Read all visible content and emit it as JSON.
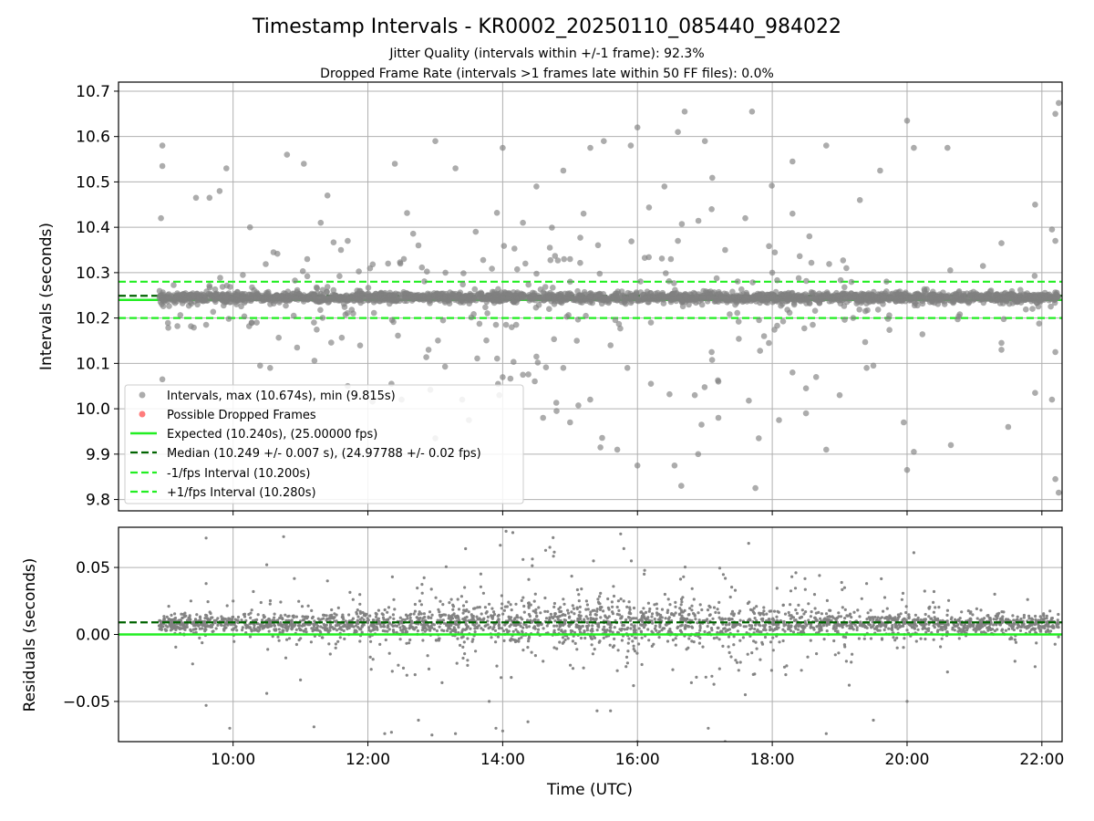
{
  "figure": {
    "title": "Timestamp Intervals - KR0002_20250110_085440_984022",
    "subtitle_line1": "Jitter Quality (intervals within +/-1 frame): 92.3%",
    "subtitle_line2": "Dropped Frame Rate (intervals >1 frames late within 50 FF files): 0.0%"
  },
  "colors": {
    "points": "#808080",
    "dropped": "#ff4444",
    "expected": "#22ee22",
    "median": "#006400",
    "fps_band": "#22ee22",
    "grid": "#b0b0b0"
  },
  "chart_data": [
    {
      "type": "scatter",
      "xlabel": "",
      "ylabel": "Intervals (seconds)",
      "x_unit": "hours (UTC)",
      "xlim": [
        8.3,
        22.3
      ],
      "ylim": [
        9.775,
        10.72
      ],
      "yticks": [
        9.8,
        9.9,
        10.0,
        10.1,
        10.2,
        10.3,
        10.4,
        10.5,
        10.6,
        10.7
      ],
      "ytick_labels": [
        "9.8",
        "9.9",
        "10.0",
        "10.1",
        "10.2",
        "10.3",
        "10.4",
        "10.5",
        "10.6",
        "10.7"
      ],
      "xticks": [
        10,
        12,
        14,
        16,
        18,
        20,
        22
      ],
      "grid": true,
      "legend_position": "lower-left",
      "series": [
        {
          "name": "Intervals, max (10.674s), min (9.815s)",
          "kind": "points",
          "color": "#808080",
          "x_range": [
            8.9,
            22.25
          ],
          "center": 10.245,
          "band": 0.012,
          "outliers": [
            [
              8.95,
              10.58
            ],
            [
              8.95,
              10.535
            ],
            [
              8.93,
              10.42
            ],
            [
              8.95,
              10.065
            ],
            [
              9.45,
              10.465
            ],
            [
              9.65,
              10.465
            ],
            [
              9.8,
              10.48
            ],
            [
              9.9,
              10.53
            ],
            [
              10.25,
              10.4
            ],
            [
              10.4,
              10.095
            ],
            [
              10.6,
              10.345
            ],
            [
              10.8,
              10.56
            ],
            [
              11.05,
              10.54
            ],
            [
              11.1,
              10.33
            ],
            [
              11.6,
              10.35
            ],
            [
              11.7,
              10.37
            ],
            [
              12.4,
              10.54
            ],
            [
              13.0,
              10.59
            ],
            [
              13.3,
              10.53
            ],
            [
              14.0,
              10.575
            ],
            [
              14.5,
              10.49
            ],
            [
              14.9,
              10.525
            ],
            [
              15.3,
              10.575
            ],
            [
              15.5,
              10.59
            ],
            [
              15.9,
              10.58
            ],
            [
              16.0,
              10.62
            ],
            [
              16.6,
              10.61
            ],
            [
              16.7,
              10.655
            ],
            [
              17.0,
              10.59
            ],
            [
              17.7,
              10.655
            ],
            [
              18.3,
              10.545
            ],
            [
              18.8,
              10.58
            ],
            [
              19.6,
              10.525
            ],
            [
              20.0,
              10.635
            ],
            [
              20.1,
              10.575
            ],
            [
              20.6,
              10.575
            ],
            [
              21.9,
              10.45
            ],
            [
              22.15,
              10.395
            ],
            [
              22.2,
              10.65
            ],
            [
              22.25,
              10.674
            ],
            [
              22.2,
              10.37
            ],
            [
              22.2,
              10.125
            ],
            [
              22.15,
              10.02
            ],
            [
              22.2,
              9.845
            ],
            [
              22.25,
              9.815
            ],
            [
              21.4,
              10.365
            ],
            [
              21.4,
              10.13
            ],
            [
              21.5,
              9.96
            ],
            [
              21.9,
              10.035
            ],
            [
              20.65,
              9.92
            ],
            [
              20.0,
              9.865
            ],
            [
              20.1,
              9.905
            ],
            [
              19.95,
              9.97
            ],
            [
              18.8,
              9.91
            ],
            [
              17.75,
              9.825
            ],
            [
              17.8,
              9.935
            ],
            [
              17.2,
              9.98
            ],
            [
              16.9,
              9.9
            ],
            [
              16.95,
              9.965
            ],
            [
              16.55,
              9.875
            ],
            [
              16.65,
              9.83
            ],
            [
              16.0,
              9.875
            ],
            [
              15.7,
              9.91
            ],
            [
              15.45,
              9.915
            ],
            [
              15.0,
              9.97
            ],
            [
              14.6,
              9.98
            ],
            [
              14.3,
              10.075
            ],
            [
              13.5,
              9.975
            ],
            [
              13.4,
              10.02
            ],
            [
              13.0,
              9.935
            ],
            [
              12.35,
              10.055
            ],
            [
              11.7,
              10.05
            ],
            [
              10.95,
              10.135
            ],
            [
              10.9,
              10.205
            ],
            [
              11.2,
              10.19
            ],
            [
              10.55,
              10.09
            ],
            [
              10.35,
              10.19
            ],
            [
              9.6,
              10.185
            ],
            [
              12.9,
              10.13
            ],
            [
              13.9,
              10.185
            ],
            [
              14.05,
              10.185
            ],
            [
              14.2,
              10.185
            ],
            [
              15.1,
              10.15
            ],
            [
              15.6,
              10.14
            ],
            [
              16.2,
              10.19
            ],
            [
              17.1,
              10.125
            ],
            [
              17.95,
              10.145
            ],
            [
              18.3,
              10.08
            ],
            [
              18.6,
              10.185
            ],
            [
              19.2,
              10.2
            ],
            [
              19.4,
              10.09
            ],
            [
              19.5,
              10.095
            ],
            [
              12.3,
              10.32
            ],
            [
              12.75,
              10.36
            ],
            [
              13.6,
              10.39
            ],
            [
              14.3,
              10.41
            ],
            [
              15.2,
              10.43
            ],
            [
              16.4,
              10.49
            ],
            [
              17.1,
              10.44
            ],
            [
              17.6,
              10.42
            ],
            [
              18.3,
              10.43
            ],
            [
              18.55,
              10.38
            ],
            [
              19.1,
              10.31
            ],
            [
              19.3,
              10.46
            ],
            [
              11.3,
              10.41
            ],
            [
              11.4,
              10.47
            ],
            [
              15.0,
              10.33
            ],
            [
              16.6,
              10.37
            ],
            [
              17.3,
              10.35
            ],
            [
              18.0,
              10.3
            ],
            [
              14.7,
              10.355
            ],
            [
              13.15,
              10.3
            ],
            [
              16.2,
              10.055
            ],
            [
              15.85,
              10.09
            ],
            [
              14.9,
              10.09
            ],
            [
              14.5,
              10.115
            ],
            [
              18.5,
              10.045
            ],
            [
              18.65,
              10.07
            ],
            [
              19.0,
              10.03
            ],
            [
              17.2,
              10.06
            ],
            [
              16.85,
              10.03
            ],
            [
              13.95,
              10.03
            ],
            [
              12.5,
              10.02
            ],
            [
              18.5,
              9.99
            ],
            [
              18.1,
              9.975
            ],
            [
              14.8,
              9.995
            ]
          ]
        },
        {
          "name": "Possible Dropped Frames",
          "kind": "points",
          "color": "#ff4444",
          "count": 0
        },
        {
          "name": "Expected (10.240s), (25.00000 fps)",
          "kind": "hline",
          "value": 10.24,
          "color": "#22ee22",
          "style": "solid"
        },
        {
          "name": "Median (10.249 +/- 0.007 s), (24.97788 +/- 0.02 fps)",
          "kind": "hline",
          "value": 10.249,
          "color": "#006400",
          "style": "dashed"
        },
        {
          "name": "-1/fps Interval (10.200s)",
          "kind": "hline",
          "value": 10.2,
          "color": "#22ee22",
          "style": "dashed"
        },
        {
          "name": "+1/fps Interval (10.280s)",
          "kind": "hline",
          "value": 10.28,
          "color": "#22ee22",
          "style": "dashed"
        }
      ]
    },
    {
      "type": "scatter",
      "xlabel": "Time (UTC)",
      "ylabel": "Residuals (seconds)",
      "x_unit": "hours (UTC)",
      "xlim": [
        8.3,
        22.3
      ],
      "ylim": [
        -0.08,
        0.08
      ],
      "yticks": [
        0.05,
        0.0,
        -0.05
      ],
      "ytick_labels": [
        "0.05",
        "0.00",
        "−0.05"
      ],
      "xticks": [
        10,
        12,
        14,
        16,
        18,
        20,
        22
      ],
      "xtick_labels": [
        "10:00",
        "12:00",
        "14:00",
        "16:00",
        "18:00",
        "20:00",
        "22:00"
      ],
      "grid": true,
      "series": [
        {
          "kind": "points",
          "color": "#808080",
          "x_range": [
            8.9,
            22.25
          ],
          "center": 0.008,
          "band": 0.012,
          "outliers": [
            [
              9.6,
              0.072
            ],
            [
              10.75,
              0.073
            ],
            [
              10.5,
              0.052
            ],
            [
              13.45,
              0.064
            ],
            [
              14.05,
              0.077
            ],
            [
              14.15,
              0.076
            ],
            [
              15.75,
              0.075
            ],
            [
              14.7,
              0.065
            ],
            [
              17.65,
              0.068
            ],
            [
              9.95,
              -0.07
            ],
            [
              11.2,
              -0.069
            ],
            [
              12.25,
              -0.074
            ],
            [
              12.35,
              -0.073
            ],
            [
              12.75,
              -0.064
            ],
            [
              12.95,
              -0.075
            ],
            [
              13.3,
              -0.074
            ],
            [
              13.9,
              -0.07
            ],
            [
              14.0,
              -0.072
            ],
            [
              15.4,
              -0.057
            ],
            [
              15.6,
              -0.057
            ],
            [
              16.0,
              -0.08
            ],
            [
              17.05,
              -0.07
            ],
            [
              17.3,
              -0.08
            ],
            [
              18.8,
              -0.074
            ],
            [
              19.5,
              -0.064
            ],
            [
              20.0,
              -0.05
            ],
            [
              20.1,
              0.061
            ],
            [
              9.4,
              -0.022
            ],
            [
              9.6,
              -0.053
            ],
            [
              10.5,
              -0.044
            ],
            [
              11.0,
              -0.034
            ],
            [
              12.7,
              -0.03
            ],
            [
              13.1,
              -0.036
            ],
            [
              16.1,
              0.045
            ],
            [
              15.7,
              -0.027
            ],
            [
              17.6,
              -0.045
            ],
            [
              18.2,
              -0.03
            ],
            [
              18.35,
              0.046
            ],
            [
              18.7,
              0.044
            ],
            [
              19.4,
              0.038
            ],
            [
              20.4,
              0.032
            ],
            [
              21.3,
              0.03
            ],
            [
              21.6,
              -0.02
            ],
            [
              9.6,
              0.038
            ],
            [
              10.3,
              0.032
            ],
            [
              11.4,
              0.04
            ],
            [
              12.05,
              -0.026
            ],
            [
              13.8,
              -0.05
            ],
            [
              14.6,
              -0.02
            ],
            [
              15.2,
              -0.025
            ],
            [
              16.8,
              -0.036
            ],
            [
              19.1,
              -0.02
            ],
            [
              20.6,
              -0.028
            ],
            [
              21.9,
              -0.024
            ]
          ]
        },
        {
          "kind": "hline",
          "value": 0.0,
          "color": "#22ee22",
          "style": "solid"
        },
        {
          "kind": "hline",
          "value": 0.009,
          "color": "#006400",
          "style": "dashed"
        }
      ]
    }
  ]
}
